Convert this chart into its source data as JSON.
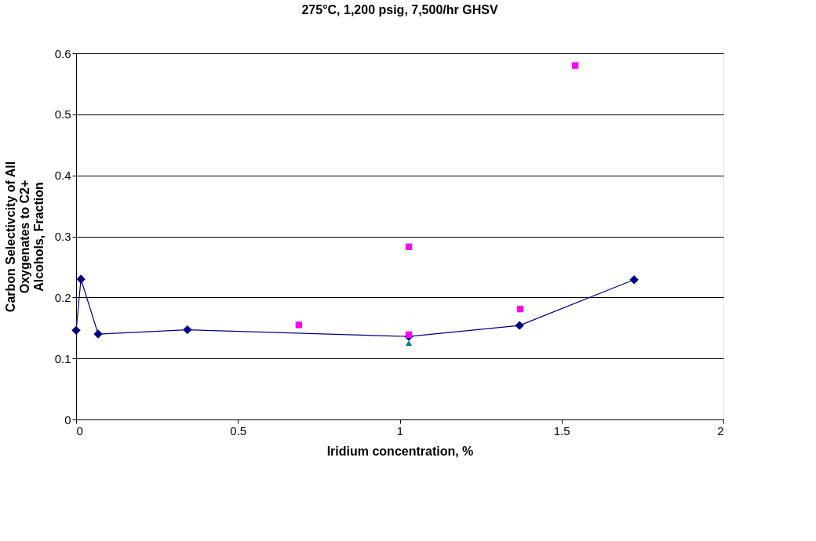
{
  "chart_data": {
    "type": "scatter",
    "title": "275°C, 1,200 psig, 7,500/hr GHSV",
    "xlabel": "Iridium concentration, %",
    "ylabel": "Carbon Selectivcity of All Oxygenates to C2+ Alcohols, Fraction",
    "xlim": [
      0,
      2
    ],
    "xticks": [
      0,
      0.5,
      1,
      1.5,
      2
    ],
    "ylim": [
      0,
      0.6
    ],
    "yticks": [
      0,
      0.1,
      0.2,
      0.3,
      0.4,
      0.5,
      0.6
    ],
    "grid": "y",
    "legend": false,
    "series": [
      {
        "type": "line",
        "marker": "diamond",
        "line_style": "solid",
        "color": "#000080",
        "x": [
          0,
          0.015,
          0.068,
          0.344,
          1.028,
          1.37,
          1.724
        ],
        "values": [
          0.146,
          0.23,
          0.14,
          0.147,
          0.136,
          0.154,
          0.229
        ]
      },
      {
        "marker": "square",
        "color": "#ff00ff",
        "x": [
          0.688,
          1.028,
          1.028,
          1.372,
          1.542
        ],
        "values": [
          0.155,
          0.283,
          0.139,
          0.181,
          0.58
        ]
      },
      {
        "marker": "triangle",
        "color": "#008080",
        "x": [
          1.028
        ],
        "values": [
          0.125
        ]
      }
    ]
  }
}
